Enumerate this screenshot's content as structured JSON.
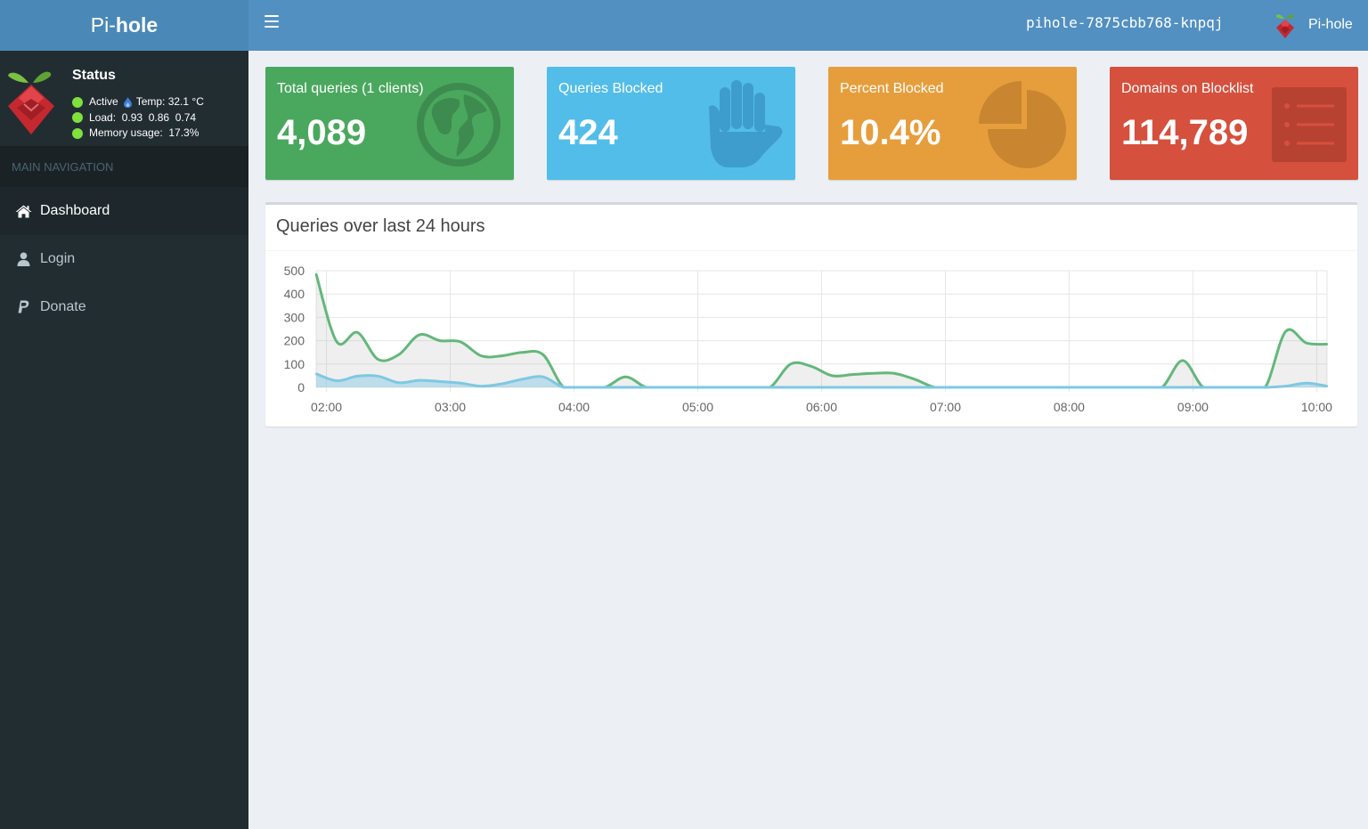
{
  "header": {
    "logo_light": "Pi-",
    "logo_bold": "hole",
    "hostname": "pihole-7875cbb768-knpqj",
    "user_name": "Pi-hole"
  },
  "sidebar": {
    "status_title": "Status",
    "status_active": "Active",
    "temp": "Temp: 32.1 °C",
    "load": "Load:  0.93  0.86  0.74",
    "memory": "Memory usage:  17.3%",
    "nav_header": "MAIN NAVIGATION",
    "items": [
      {
        "label": "Dashboard",
        "icon": "home-icon",
        "active": true
      },
      {
        "label": "Login",
        "icon": "user-icon",
        "active": false
      },
      {
        "label": "Donate",
        "icon": "paypal-icon",
        "active": false
      }
    ]
  },
  "stats": [
    {
      "label": "Total queries (1 clients)",
      "value": "4,089",
      "icon": "globe-icon",
      "color": "#4aa85e"
    },
    {
      "label": "Queries Blocked",
      "value": "424",
      "icon": "hand-icon",
      "color": "#52bde9"
    },
    {
      "label": "Percent Blocked",
      "value": "10.4%",
      "icon": "pie-chart-icon",
      "color": "#e69e3c"
    },
    {
      "label": "Domains on Blocklist",
      "value": "114,789",
      "icon": "list-icon",
      "color": "#d5503d"
    }
  ],
  "chart_panel": {
    "title": "Queries over last 24 hours"
  },
  "chart_data": {
    "type": "area",
    "title": "Queries over last 24 hours",
    "xlabel": "",
    "ylabel": "",
    "ylim": [
      0,
      500
    ],
    "yticks": [
      0,
      100,
      200,
      300,
      400,
      500
    ],
    "xlim": [
      "01:55",
      "10:05"
    ],
    "xticks": [
      "02:00",
      "03:00",
      "04:00",
      "05:00",
      "06:00",
      "07:00",
      "08:00",
      "09:00",
      "10:00"
    ],
    "grid": true,
    "legend": "none",
    "x": [
      "01:55",
      "02:05",
      "02:15",
      "02:25",
      "02:35",
      "02:45",
      "02:55",
      "03:05",
      "03:15",
      "03:25",
      "03:35",
      "03:45",
      "03:55",
      "04:05",
      "04:15",
      "04:25",
      "04:35",
      "04:45",
      "04:55",
      "05:05",
      "05:15",
      "05:25",
      "05:35",
      "05:45",
      "05:55",
      "06:05",
      "06:15",
      "06:25",
      "06:35",
      "06:45",
      "06:55",
      "07:05",
      "07:15",
      "07:25",
      "07:35",
      "07:45",
      "07:55",
      "08:05",
      "08:15",
      "08:25",
      "08:35",
      "08:45",
      "08:55",
      "09:05",
      "09:15",
      "09:25",
      "09:35",
      "09:45",
      "09:55",
      "10:05"
    ],
    "series": [
      {
        "color": "#63b77b",
        "values": [
          485,
          195,
          235,
          120,
          140,
          225,
          200,
          195,
          135,
          135,
          150,
          140,
          0,
          0,
          0,
          45,
          0,
          0,
          0,
          0,
          0,
          0,
          0,
          100,
          90,
          50,
          55,
          60,
          60,
          35,
          0,
          0,
          0,
          0,
          0,
          0,
          0,
          0,
          0,
          0,
          0,
          0,
          115,
          0,
          0,
          0,
          0,
          240,
          190,
          185
        ]
      },
      {
        "color": "#7ec8e3",
        "values": [
          58,
          28,
          48,
          48,
          20,
          30,
          25,
          18,
          5,
          15,
          35,
          45,
          0,
          0,
          0,
          0,
          0,
          0,
          0,
          0,
          0,
          0,
          0,
          0,
          0,
          0,
          0,
          0,
          0,
          0,
          0,
          0,
          0,
          0,
          0,
          0,
          0,
          0,
          0,
          0,
          0,
          0,
          0,
          0,
          0,
          0,
          0,
          5,
          18,
          5
        ]
      }
    ]
  }
}
